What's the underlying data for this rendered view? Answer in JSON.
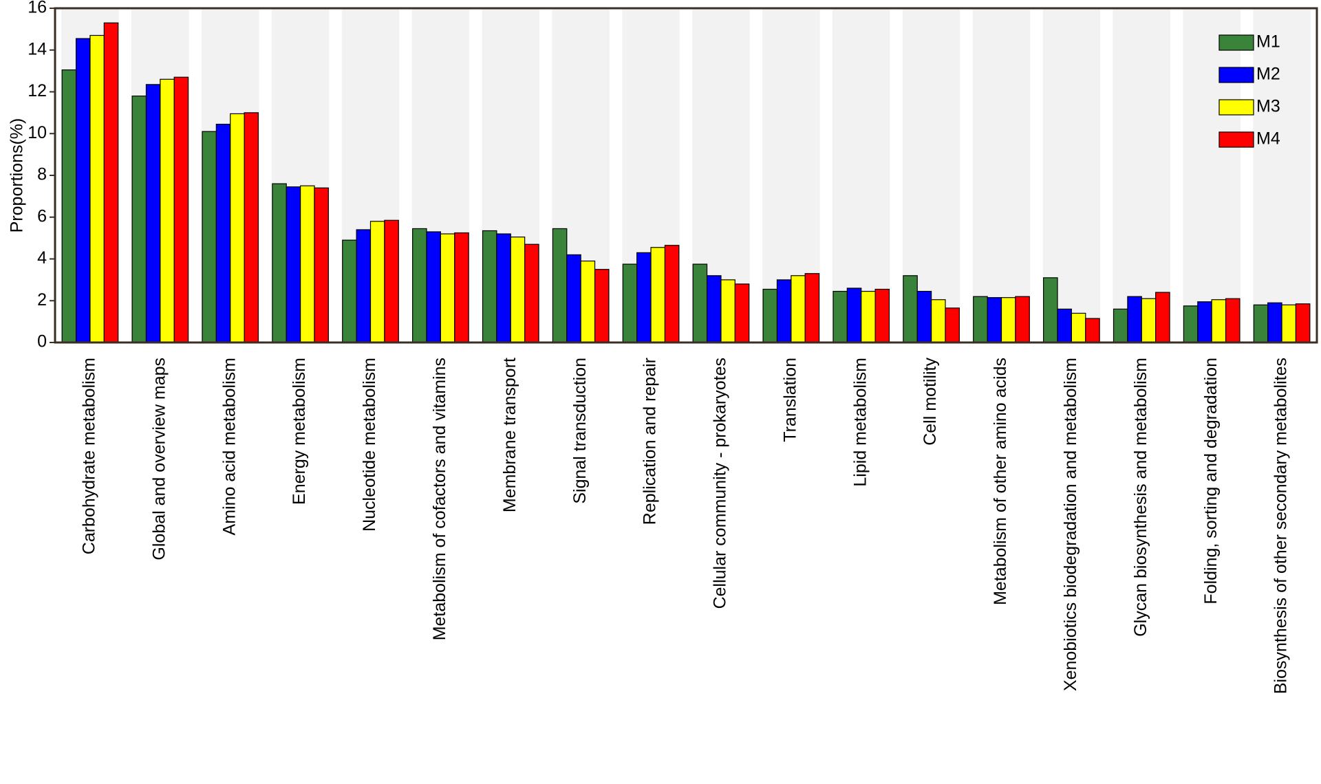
{
  "chart_data": {
    "type": "bar",
    "y_label": "Proportions(%)",
    "categories": [
      "Carbohydrate metabolism",
      "Global and overview maps",
      "Amino acid metabolism",
      "Energy metabolism",
      "Nucleotide metabolism",
      "Metabolism of cofactors and vitamins",
      "Membrane transport",
      "Signal transduction",
      "Replication and repair",
      "Cellular community - prokaryotes",
      "Translation",
      "Lipid metabolism",
      "Cell motility",
      "Metabolism of other amino acids",
      "Xenobiotics biodegradation and metabolism",
      "Glycan biosynthesis and metabolism",
      "Folding, sorting and degradation",
      "Biosynthesis of other secondary metabolites"
    ],
    "series": [
      {
        "name": "M1",
        "color": "#3a833a",
        "values": [
          13.05,
          11.8,
          10.1,
          7.6,
          4.9,
          5.45,
          5.35,
          5.45,
          3.75,
          3.75,
          2.55,
          2.45,
          3.2,
          2.2,
          3.1,
          1.6,
          1.75,
          1.8
        ]
      },
      {
        "name": "M2",
        "color": "#0000ff",
        "values": [
          14.55,
          12.35,
          10.45,
          7.45,
          5.4,
          5.3,
          5.2,
          4.2,
          4.3,
          3.2,
          3.0,
          2.6,
          2.45,
          2.15,
          1.6,
          2.2,
          1.95,
          1.9
        ]
      },
      {
        "name": "M3",
        "color": "#ffff00",
        "values": [
          14.7,
          12.6,
          10.95,
          7.5,
          5.8,
          5.2,
          5.05,
          3.9,
          4.55,
          3.0,
          3.2,
          2.45,
          2.05,
          2.15,
          1.4,
          2.1,
          2.05,
          1.8
        ]
      },
      {
        "name": "M4",
        "color": "#ff0000",
        "values": [
          15.3,
          12.7,
          11.0,
          7.4,
          5.85,
          5.25,
          4.7,
          3.5,
          4.65,
          2.8,
          3.3,
          2.55,
          1.65,
          2.2,
          1.15,
          2.4,
          2.1,
          1.85
        ]
      }
    ],
    "ylim": [
      0,
      16
    ],
    "yticks": [
      0,
      2,
      4,
      6,
      8,
      10,
      12,
      14,
      16
    ],
    "legend": "upper right",
    "band_color": "#f2f2f2"
  }
}
